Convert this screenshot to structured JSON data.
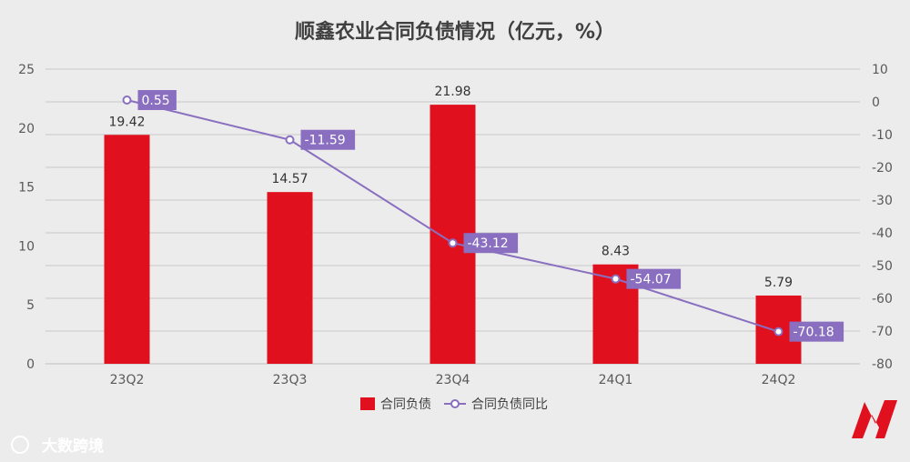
{
  "chart_data": {
    "type": "bar",
    "title": "顺鑫农业合同负债情况（亿元，%）",
    "categories": [
      "23Q2",
      "23Q3",
      "23Q4",
      "24Q1",
      "24Q2"
    ],
    "series": [
      {
        "name": "合同负债",
        "type": "bar",
        "axis": "left",
        "values": [
          19.42,
          14.57,
          21.98,
          8.43,
          5.79
        ],
        "labels": [
          "19.42",
          "14.57",
          "21.98",
          "8.43",
          "5.79"
        ],
        "color": "#e0101e"
      },
      {
        "name": "合同负债同比",
        "type": "line",
        "axis": "right",
        "values": [
          0.55,
          -11.59,
          -43.12,
          -54.07,
          -70.18
        ],
        "labels": [
          "0.55",
          "-11.59",
          "-43.12",
          "-54.07",
          "-70.18"
        ],
        "color": "#8a6fc0"
      }
    ],
    "y_left": {
      "range": [
        0,
        25
      ],
      "ticks": [
        "0",
        "5",
        "10",
        "15",
        "20",
        "25"
      ]
    },
    "y_right": {
      "range": [
        -80,
        10
      ],
      "ticks": [
        "-80",
        "-70",
        "-60",
        "-50",
        "-40",
        "-30",
        "-20",
        "-10",
        "0",
        "10"
      ]
    },
    "grid": true,
    "legend_position": "bottom"
  },
  "watermark": {
    "text": "大数跨境"
  }
}
